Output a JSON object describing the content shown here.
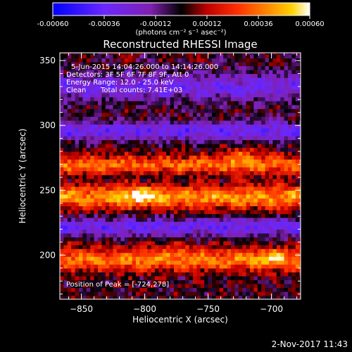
{
  "colorbar": {
    "tick_labels": [
      "-0.00060",
      "-0.00036",
      "-0.00012",
      "0.00012",
      "0.00036",
      "0.00060"
    ],
    "tick_values": [
      -0.0006,
      -0.00036,
      -0.00012,
      0.00012,
      0.00036,
      0.0006
    ],
    "units": "(photons cm⁻² s⁻¹ asec⁻²)",
    "colors": [
      "#0000ff",
      "#6a28ff",
      "#8020b0",
      "#000000",
      "#c00000",
      "#ff3000",
      "#ff8c00",
      "#ffd200",
      "#ffffff"
    ]
  },
  "annotations": {
    "time_range": "5-Jun-2015 14:04:26.000 to 14:14:26.000",
    "detectors": "Detectors: 3F 5F 6F 7F 8F 9F, Att 0",
    "energy_range": "Energy Range: 12.0 - 25.0 keV",
    "clean": "Clean",
    "total_counts": "Total counts: 7.41E+03",
    "peak": "Position of Peak = [-724,278]"
  },
  "footer": {
    "date": "2-Nov-2017 11:43"
  },
  "chart_data": {
    "type": "heatmap",
    "title": "Reconstructed RHESSI Image",
    "xlabel": "Heliocentric X (arcsec)",
    "ylabel": "Heliocentric Y (arcsec)",
    "xlim": [
      -867,
      -677
    ],
    "ylim": [
      166,
      356
    ],
    "x_ticks": [
      -850,
      -800,
      -750,
      -700
    ],
    "y_ticks": [
      200,
      250,
      300,
      350
    ],
    "value_range": [
      -0.0006,
      0.0006
    ],
    "grid": false,
    "bands": [
      {
        "y_center": 197,
        "y_width": 9,
        "amplitude": 0.00036
      },
      {
        "y_center": 222,
        "y_width": 7,
        "amplitude": -0.00032
      },
      {
        "y_center": 245,
        "y_width": 9,
        "amplitude": 0.00042
      },
      {
        "y_center": 270,
        "y_width": 7,
        "amplitude": 0.00034
      },
      {
        "y_center": 296,
        "y_width": 7,
        "amplitude": -0.00034
      },
      {
        "y_center": 330,
        "y_width": 10,
        "amplitude": -0.0003
      }
    ],
    "peaks": [
      {
        "x": -724,
        "y": 278,
        "value": 0.0006
      },
      {
        "x": -803,
        "y": 247,
        "value": 0.0006
      },
      {
        "x": -700,
        "y": 198,
        "value": 0.00055
      },
      {
        "x": -774,
        "y": 205,
        "value": 0.00048
      }
    ],
    "peak_position": [
      -724,
      278
    ]
  }
}
